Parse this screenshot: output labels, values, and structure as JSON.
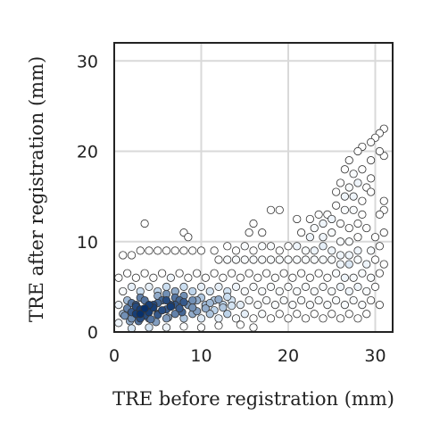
{
  "chart_data": {
    "type": "scatter",
    "title": "",
    "xlabel": "TRE before registration (mm)",
    "ylabel": "TRE after registration (mm)",
    "xlim": [
      0,
      32
    ],
    "ylim": [
      0,
      32
    ],
    "xticks": [
      0,
      10,
      20,
      30
    ],
    "yticks": [
      0,
      10,
      20,
      30
    ],
    "grid": true,
    "point_color": "#ffffff",
    "point_edge_color": "#333333",
    "density_color_dense": "#08306b",
    "density_color_light": "#c6dbef",
    "series": [
      {
        "points": [
          [
            30.5,
            22
          ],
          [
            30,
            21.5
          ],
          [
            31,
            22.5
          ],
          [
            29.5,
            21
          ],
          [
            28.5,
            20.5
          ],
          [
            30.5,
            20
          ],
          [
            31,
            19.5
          ],
          [
            29.5,
            19
          ],
          [
            28,
            20
          ],
          [
            27,
            19
          ],
          [
            26.5,
            18
          ],
          [
            27.5,
            17.5
          ],
          [
            28.5,
            18
          ],
          [
            29.5,
            17
          ],
          [
            28,
            16.5
          ],
          [
            29,
            16
          ],
          [
            27,
            16
          ],
          [
            26,
            16.5
          ],
          [
            25.5,
            15.5
          ],
          [
            26.5,
            15
          ],
          [
            27.5,
            15
          ],
          [
            28.5,
            14.5
          ],
          [
            29.5,
            15.5
          ],
          [
            31,
            14.5
          ],
          [
            31,
            13.5
          ],
          [
            30.5,
            13
          ],
          [
            28.5,
            13
          ],
          [
            27.5,
            13.5
          ],
          [
            26.5,
            13.5
          ],
          [
            25.5,
            14
          ],
          [
            24.5,
            13
          ],
          [
            25,
            12.5
          ],
          [
            26,
            12
          ],
          [
            27,
            11.5
          ],
          [
            28,
            12
          ],
          [
            29,
            11.5
          ],
          [
            24,
            12
          ],
          [
            23,
            11.5
          ],
          [
            22.5,
            12.5
          ],
          [
            23.5,
            13
          ],
          [
            21,
            12.5
          ],
          [
            19,
            13.5
          ],
          [
            18,
            13.5
          ],
          [
            16,
            12
          ],
          [
            15.5,
            11
          ],
          [
            17,
            11
          ],
          [
            21.5,
            11
          ],
          [
            22.5,
            10.5
          ],
          [
            24,
            10.5
          ],
          [
            25,
            11
          ],
          [
            26,
            10
          ],
          [
            27,
            10
          ],
          [
            28,
            10.5
          ],
          [
            30,
            10.5
          ],
          [
            31,
            11
          ],
          [
            30.5,
            9.5
          ],
          [
            29.5,
            9
          ],
          [
            28,
            9
          ],
          [
            27,
            8.5
          ],
          [
            26,
            8.5
          ],
          [
            25,
            9
          ],
          [
            24,
            9.5
          ],
          [
            23,
            9
          ],
          [
            22,
            9
          ],
          [
            21,
            9.5
          ],
          [
            20,
            9.5
          ],
          [
            19,
            9
          ],
          [
            18,
            9.5
          ],
          [
            17,
            9.5
          ],
          [
            16,
            9
          ],
          [
            15,
            9.5
          ],
          [
            14,
            9
          ],
          [
            13,
            9.5
          ],
          [
            11.5,
            9
          ],
          [
            10,
            9
          ],
          [
            9,
            9
          ],
          [
            8,
            9
          ],
          [
            7,
            9
          ],
          [
            6,
            9
          ],
          [
            5,
            9
          ],
          [
            4,
            9
          ],
          [
            3,
            9
          ],
          [
            2,
            8.5
          ],
          [
            1,
            8.5
          ],
          [
            3.5,
            12
          ],
          [
            8,
            11
          ],
          [
            8.5,
            10.5
          ],
          [
            12,
            8
          ],
          [
            13,
            8
          ],
          [
            14,
            8
          ],
          [
            15,
            8
          ],
          [
            16,
            8
          ],
          [
            17,
            8
          ],
          [
            18,
            8
          ],
          [
            19,
            8
          ],
          [
            20,
            8
          ],
          [
            21,
            8
          ],
          [
            22,
            8
          ],
          [
            23,
            8
          ],
          [
            24,
            8
          ],
          [
            25,
            8
          ],
          [
            26,
            7.5
          ],
          [
            27,
            7.5
          ],
          [
            28,
            8
          ],
          [
            29,
            7.5
          ],
          [
            30,
            8
          ],
          [
            31,
            7.5
          ],
          [
            30.5,
            6.5
          ],
          [
            29.5,
            6
          ],
          [
            28.5,
            6.5
          ],
          [
            27.5,
            6
          ],
          [
            26.5,
            6
          ],
          [
            25.5,
            6.5
          ],
          [
            24.5,
            6
          ],
          [
            23.5,
            6.5
          ],
          [
            22.5,
            6
          ],
          [
            21.5,
            6.5
          ],
          [
            20.5,
            6
          ],
          [
            19.5,
            6.5
          ],
          [
            18.5,
            6
          ],
          [
            17.5,
            6.5
          ],
          [
            16.5,
            6
          ],
          [
            15.5,
            6.5
          ],
          [
            14.5,
            6
          ],
          [
            13.5,
            6.5
          ],
          [
            12.5,
            6
          ],
          [
            11.5,
            6.5
          ],
          [
            10.5,
            6
          ],
          [
            9.5,
            6.5
          ],
          [
            8.5,
            6
          ],
          [
            7.5,
            6.5
          ],
          [
            6.5,
            6
          ],
          [
            5.5,
            6.5
          ],
          [
            4.5,
            6
          ],
          [
            3.5,
            6.5
          ],
          [
            2.5,
            6
          ],
          [
            1.5,
            6.5
          ],
          [
            0.5,
            6
          ],
          [
            30,
            5
          ],
          [
            29,
            4.5
          ],
          [
            28,
            5
          ],
          [
            27,
            4.5
          ],
          [
            26,
            5
          ],
          [
            25,
            4.5
          ],
          [
            24,
            5
          ],
          [
            23,
            4.5
          ],
          [
            22,
            5
          ],
          [
            21,
            4.5
          ],
          [
            20,
            5
          ],
          [
            19,
            4.5
          ],
          [
            18,
            5
          ],
          [
            17,
            4.5
          ],
          [
            16,
            5
          ],
          [
            15,
            4.5
          ],
          [
            14,
            5
          ],
          [
            13,
            4.5
          ],
          [
            12,
            5
          ],
          [
            11,
            4.5
          ],
          [
            10,
            5
          ],
          [
            9,
            4.5
          ],
          [
            8,
            5
          ],
          [
            7,
            4.5
          ],
          [
            6,
            5
          ],
          [
            5,
            4.5
          ],
          [
            4,
            5
          ],
          [
            3,
            4.5
          ],
          [
            2,
            5
          ],
          [
            1,
            4.5
          ],
          [
            30.5,
            3
          ],
          [
            29.5,
            3.5
          ],
          [
            28.5,
            3
          ],
          [
            27.5,
            3.5
          ],
          [
            26.5,
            3
          ],
          [
            25.5,
            3.5
          ],
          [
            24.5,
            3
          ],
          [
            23.5,
            3.5
          ],
          [
            22.5,
            3
          ],
          [
            21.5,
            3.5
          ],
          [
            20.5,
            3
          ],
          [
            19.5,
            3.5
          ],
          [
            18.5,
            3
          ],
          [
            17.5,
            3.5
          ],
          [
            16.5,
            3
          ],
          [
            15.5,
            3.5
          ],
          [
            14.5,
            3
          ],
          [
            13.5,
            3.5
          ],
          [
            12.5,
            3
          ],
          [
            11.5,
            3.5
          ],
          [
            10.5,
            3
          ],
          [
            9.5,
            3.5
          ],
          [
            8.5,
            3
          ],
          [
            7.5,
            3.5
          ],
          [
            6.5,
            3
          ],
          [
            5.5,
            3.5
          ],
          [
            4.5,
            3
          ],
          [
            3.5,
            3.5
          ],
          [
            2.5,
            3
          ],
          [
            1.5,
            3.5
          ],
          [
            0.5,
            3
          ],
          [
            29,
            2
          ],
          [
            28,
            1.5
          ],
          [
            27,
            2
          ],
          [
            26,
            1.5
          ],
          [
            25,
            2
          ],
          [
            24,
            1.5
          ],
          [
            23,
            2
          ],
          [
            22,
            1.5
          ],
          [
            21,
            2
          ],
          [
            20,
            1.5
          ],
          [
            19,
            2
          ],
          [
            18,
            1.5
          ],
          [
            17,
            2
          ],
          [
            16,
            1.5
          ],
          [
            15,
            2
          ],
          [
            14,
            1.5
          ],
          [
            13,
            2
          ],
          [
            12,
            1.5
          ],
          [
            11,
            2
          ],
          [
            10,
            1.5
          ],
          [
            9,
            2
          ],
          [
            8,
            1.5
          ],
          [
            7,
            2
          ],
          [
            6,
            1.5
          ],
          [
            5,
            2
          ],
          [
            4,
            1.5
          ],
          [
            3,
            2
          ],
          [
            2,
            1.5
          ],
          [
            1,
            2
          ],
          [
            0.5,
            1
          ],
          [
            16,
            0.5
          ],
          [
            14.5,
            0.8
          ],
          [
            12,
            0.7
          ],
          [
            10,
            0.5
          ],
          [
            8,
            0.6
          ],
          [
            6,
            0.5
          ],
          [
            4,
            0.5
          ],
          [
            2,
            0.4
          ],
          [
            2,
            2.2
          ],
          [
            2.5,
            2.0
          ],
          [
            3,
            2.5
          ],
          [
            3.5,
            1.8
          ],
          [
            4,
            2.2
          ],
          [
            4.5,
            2.7
          ],
          [
            5,
            1.9
          ],
          [
            5.5,
            2.4
          ],
          [
            3,
            1.5
          ],
          [
            2.5,
            2.8
          ],
          [
            4,
            3
          ],
          [
            5,
            3.2
          ],
          [
            3.5,
            2.6
          ],
          [
            2.8,
            1.2
          ],
          [
            4.2,
            1.4
          ],
          [
            6,
            2.5
          ],
          [
            6.5,
            2.8
          ],
          [
            7,
            3
          ],
          [
            7.5,
            2.6
          ],
          [
            8,
            3.3
          ],
          [
            8.5,
            3
          ],
          [
            9,
            2.7
          ],
          [
            6,
            3.5
          ],
          [
            7,
            3.8
          ],
          [
            8,
            4
          ],
          [
            9,
            3.5
          ],
          [
            10,
            3.8
          ],
          [
            11,
            3.2
          ],
          [
            12,
            3.6
          ],
          [
            13,
            3.9
          ],
          [
            5,
            4
          ],
          [
            6,
            4.2
          ],
          [
            7,
            4.5
          ],
          [
            3,
            3.8
          ],
          [
            2,
            3.2
          ],
          [
            1.5,
            2.6
          ],
          [
            1.2,
            1.8
          ],
          [
            1.8,
            1.2
          ],
          [
            4.8,
            1.1
          ],
          [
            6.2,
            1.6
          ],
          [
            7.8,
            2.2
          ],
          [
            9.5,
            2.3
          ],
          [
            10.5,
            2.6
          ],
          [
            11.5,
            2.4
          ],
          [
            12.5,
            2.7
          ],
          [
            13.5,
            2.9
          ]
        ]
      }
    ]
  }
}
